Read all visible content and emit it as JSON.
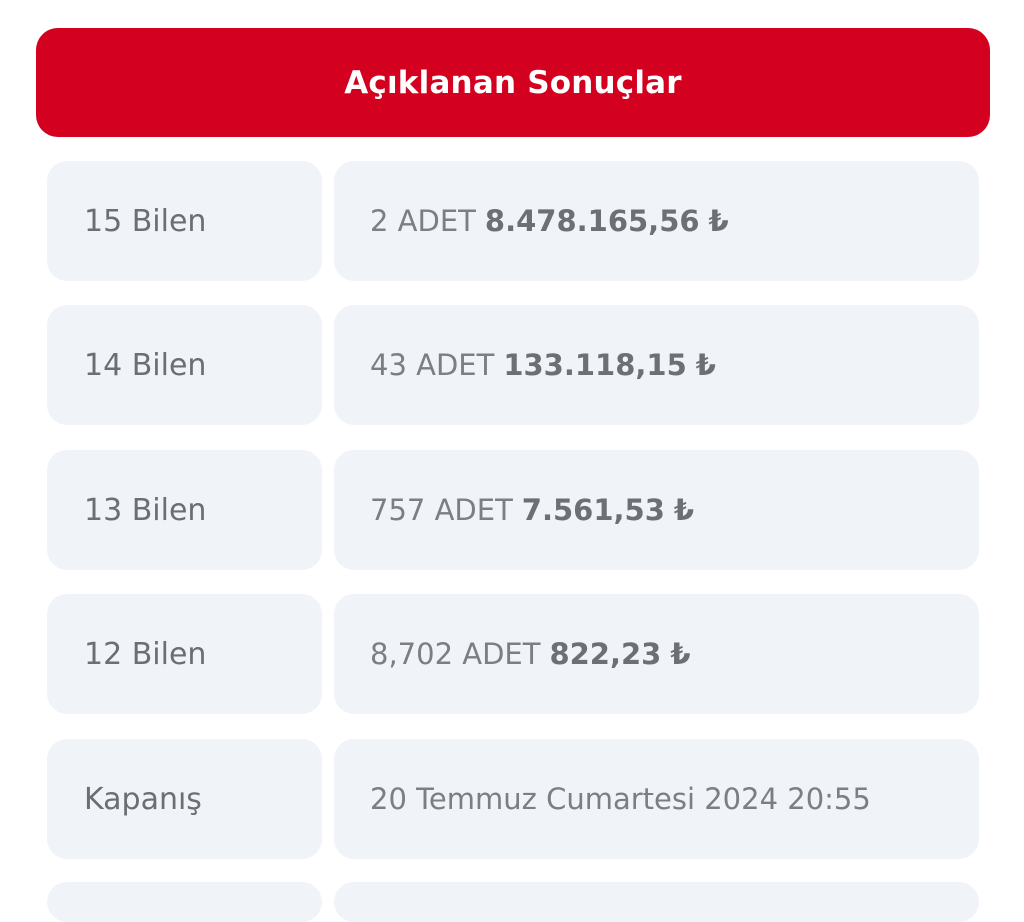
{
  "header": {
    "title": "Açıklanan Sonuçlar"
  },
  "results": [
    {
      "label": "15 Bilen",
      "count": "2 ADET",
      "amount": "8.478.165,56",
      "currency": "₺"
    },
    {
      "label": "14 Bilen",
      "count": "43 ADET",
      "amount": "133.118,15",
      "currency": "₺"
    },
    {
      "label": "13 Bilen",
      "count": "757 ADET",
      "amount": "7.561,53",
      "currency": "₺"
    },
    {
      "label": "12 Bilen",
      "count": "8,702 ADET",
      "amount": "822,23",
      "currency": "₺"
    }
  ],
  "closing": {
    "label": "Kapanış",
    "value": "20 Temmuz Cumartesi 2024 20:55"
  },
  "colors": {
    "accent": "#d3001f",
    "cell_bg": "#f0f4f8",
    "text": "#6b6e73"
  }
}
